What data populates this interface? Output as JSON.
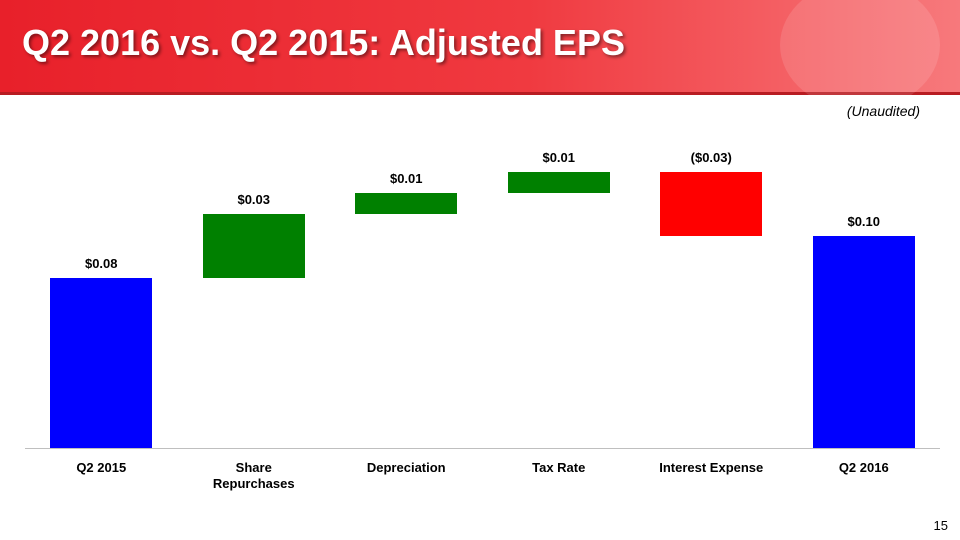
{
  "slide": {
    "title": "Q2 2016 vs. Q2 2015: Adjusted EPS",
    "note": "(Unaudited)",
    "page_number": 15
  },
  "chart_data": {
    "type": "waterfall",
    "categories": [
      "Q2 2015",
      "Share Repurchases",
      "Depreciation",
      "Tax Rate",
      "Interest Expense",
      "Q2 2016"
    ],
    "values": [
      0.08,
      0.03,
      0.01,
      0.01,
      -0.03,
      0.1
    ],
    "value_labels": [
      "$0.08",
      "$0.03",
      "$0.01",
      "$0.01",
      "($0.03)",
      "$0.10"
    ],
    "colors": [
      "#0000ff",
      "#008000",
      "#008000",
      "#008000",
      "#ff0000",
      "#0000ff"
    ]
  }
}
